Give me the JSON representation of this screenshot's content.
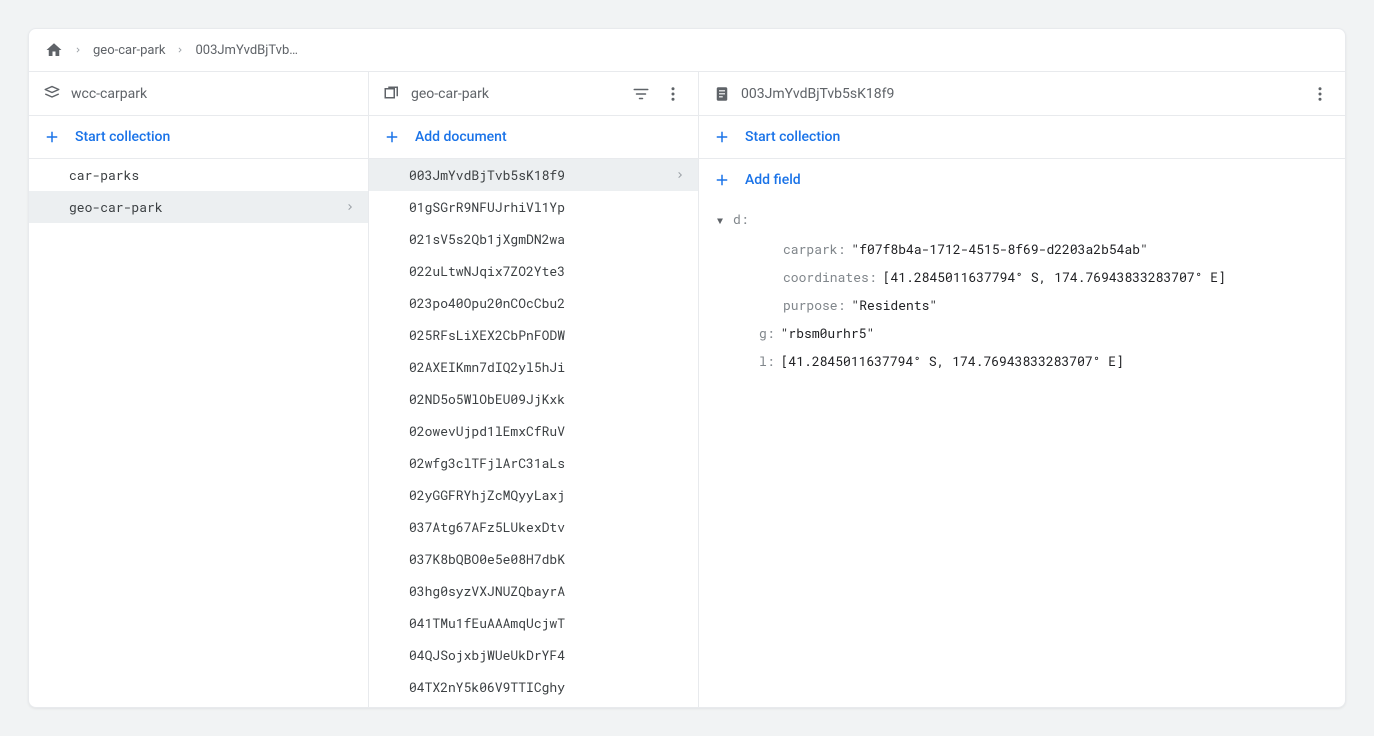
{
  "breadcrumb": {
    "items": [
      "geo-car-park",
      "003JmYvdBjTvb…"
    ]
  },
  "root": {
    "header": "wcc-carpark",
    "start_collection": "Start collection",
    "collections": [
      {
        "name": "car-parks",
        "selected": false
      },
      {
        "name": "geo-car-park",
        "selected": true
      }
    ]
  },
  "collection": {
    "header": "geo-car-park",
    "add_document": "Add document",
    "documents": [
      {
        "id": "003JmYvdBjTvb5sK18f9",
        "selected": true
      },
      {
        "id": "01gSGrR9NFUJrhiVl1Yp",
        "selected": false
      },
      {
        "id": "021sV5s2Qb1jXgmDN2wa",
        "selected": false
      },
      {
        "id": "022uLtwNJqix7ZO2Yte3",
        "selected": false
      },
      {
        "id": "023po40Opu20nCOcCbu2",
        "selected": false
      },
      {
        "id": "025RFsLiXEX2CbPnFODW",
        "selected": false
      },
      {
        "id": "02AXEIKmn7dIQ2yl5hJi",
        "selected": false
      },
      {
        "id": "02ND5o5WlObEU09JjKxk",
        "selected": false
      },
      {
        "id": "02owevUjpd1lEmxCfRuV",
        "selected": false
      },
      {
        "id": "02wfg3clTFjlArC31aLs",
        "selected": false
      },
      {
        "id": "02yGGFRYhjZcMQyyLaxj",
        "selected": false
      },
      {
        "id": "037Atg67AFz5LUkexDtv",
        "selected": false
      },
      {
        "id": "037K8bQBO0e5e08H7dbK",
        "selected": false
      },
      {
        "id": "03hg0syzVXJNUZQbayrA",
        "selected": false
      },
      {
        "id": "041TMu1fEuAAAmqUcjwT",
        "selected": false
      },
      {
        "id": "04QJSojxbjWUeUkDrYF4",
        "selected": false
      },
      {
        "id": "04TX2nY5k06V9TTICghy",
        "selected": false
      }
    ]
  },
  "document": {
    "header": "003JmYvdBjTvb5sK18f9",
    "start_collection": "Start collection",
    "add_field": "Add field",
    "fields": [
      {
        "indent": 0,
        "key": "d",
        "value": "",
        "expandable": true
      },
      {
        "indent": 2,
        "key": "carpark",
        "value": "\"f07f8b4a-1712-4515-8f69-d2203a2b54ab\""
      },
      {
        "indent": 2,
        "key": "coordinates",
        "value": "[41.2845011637794° S, 174.76943833283707° E]"
      },
      {
        "indent": 2,
        "key": "purpose",
        "value": "\"Residents\""
      },
      {
        "indent": 1,
        "key": "g",
        "value": "\"rbsm0urhr5\""
      },
      {
        "indent": 1,
        "key": "l",
        "value": "[41.2845011637794° S, 174.76943833283707° E]"
      }
    ]
  },
  "colors": {
    "accent": "#1a73e8",
    "text": "#5f6368",
    "border": "#e8eaed",
    "bg": "#f1f3f4",
    "selected_bg": "#eceff1"
  }
}
